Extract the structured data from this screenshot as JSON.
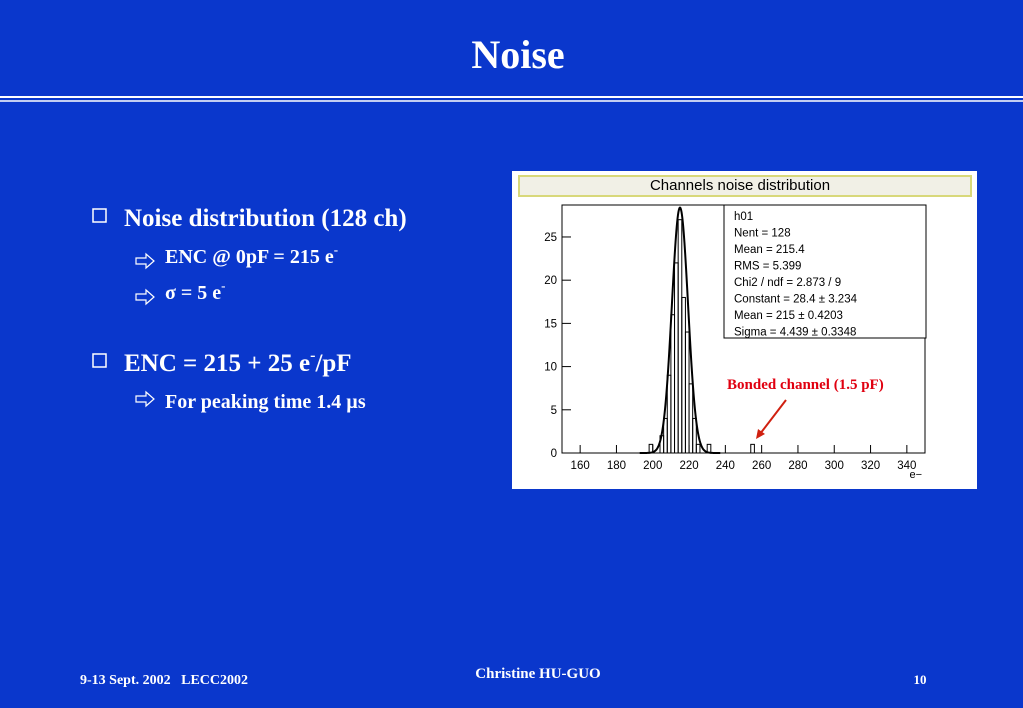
{
  "slide": {
    "title": "Noise",
    "bullets": [
      {
        "text": "Noise distribution (128 ch)",
        "sub": [
          {
            "text": "ENC @ 0pF = 215 e",
            "sup": "-"
          },
          {
            "text": "σ = 5 e",
            "sup": "-"
          }
        ]
      },
      {
        "text": "ENC = 215 + 25 e",
        "sup": "-",
        "after": "/pF",
        "sub": [
          {
            "text": "For peaking time 1.4 µs"
          }
        ]
      }
    ],
    "footer": {
      "left": "9-13 Sept. 2002   LECC2002",
      "center": "Christine HU-GUO",
      "page": 10
    }
  },
  "chart_data": {
    "type": "histogram",
    "title": "Channels noise distribution",
    "x_label": "e−",
    "bins": [
      196,
      198,
      200,
      202,
      204,
      206,
      208,
      210,
      212,
      214,
      216,
      218,
      220,
      222,
      224,
      226,
      228,
      230,
      232,
      234,
      236,
      238,
      240,
      242,
      244,
      246,
      248,
      250,
      252,
      254,
      256,
      258
    ],
    "values": [
      0,
      1,
      0,
      0,
      2,
      4,
      9,
      16,
      22,
      27,
      18,
      14,
      8,
      4,
      1,
      0,
      0,
      1,
      0,
      0,
      0,
      0,
      0,
      0,
      0,
      0,
      0,
      0,
      0,
      1,
      0
    ],
    "color": "#000000",
    "xlim": [
      150,
      350
    ],
    "xticks": [
      160,
      180,
      200,
      220,
      240,
      260,
      280,
      300,
      320,
      340
    ],
    "ylim": [
      0,
      28.7
    ],
    "yticks": [
      0,
      5,
      10,
      15,
      20,
      25
    ],
    "stats": [
      "h01",
      "Nent = 128",
      "Mean  =  215.4",
      "RMS   =  5.399",
      "Chi2 / ndf = 2.873 / 9",
      "Constant =  28.4   ± 3.234",
      "Mean     =   215   ± 0.4203",
      "Sigma    = 4.439   ± 0.3348"
    ],
    "fit": {
      "constant": 28.4,
      "mean": 215,
      "sigma": 4.439
    },
    "annotation": "Bonded channel (1.5 pF)"
  }
}
